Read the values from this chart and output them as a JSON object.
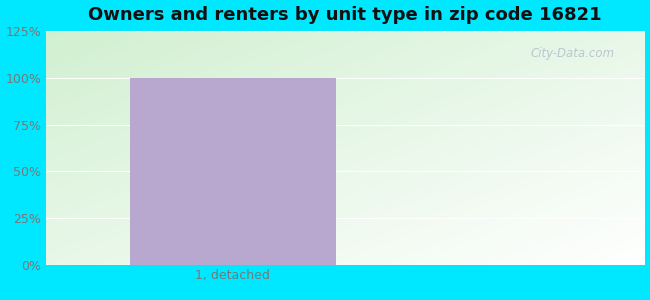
{
  "title": "Owners and renters by unit type in zip code 16821",
  "categories": [
    "1, detached"
  ],
  "values": [
    100
  ],
  "bar_color": "#b8a8d0",
  "ylim": [
    0,
    125
  ],
  "yticks": [
    0,
    25,
    50,
    75,
    100,
    125
  ],
  "ytick_labels": [
    "0%",
    "25%",
    "50%",
    "75%",
    "100%",
    "125%"
  ],
  "outer_bg_color": "#00e8ff",
  "title_fontsize": 13,
  "tick_fontsize": 9,
  "bar_width": 0.55,
  "watermark": "City-Data.com",
  "grid_color": "#d0e8d0",
  "tick_color": "#777777"
}
